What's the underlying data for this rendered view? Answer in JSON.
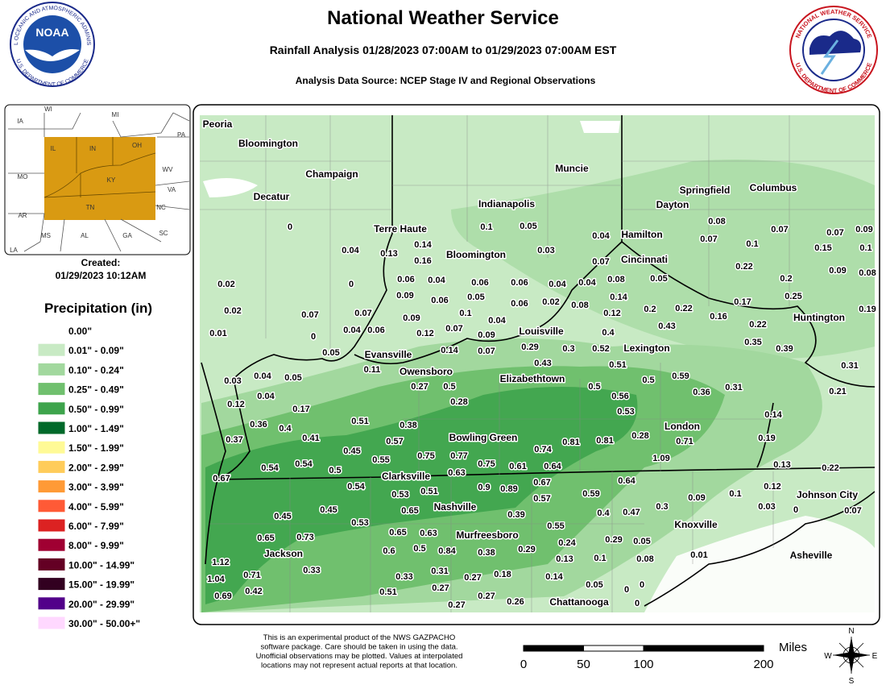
{
  "header": {
    "title": "National Weather Service",
    "subtitle": "Rainfall Analysis 01/28/2023 07:00AM to 01/29/2023 07:00AM EST",
    "source": "Analysis Data Source: NCEP Stage IV and Regional Observations"
  },
  "logos": {
    "noaa_name": "NOAA",
    "noaa_ring_top": "NATIONAL OCEANIC AND ATMOSPHERIC ADMINISTRATION",
    "noaa_ring_bottom": "U.S. DEPARTMENT OF COMMERCE",
    "nws_ring_top": "NATIONAL WEATHER SERVICE",
    "nws_ring_bottom": "U.S. DEPARTMENT OF COMMERCE"
  },
  "inset": {
    "states": [
      "WI",
      "MI",
      "IA",
      "IL",
      "IN",
      "OH",
      "PA",
      "WV",
      "MO",
      "KY",
      "VA",
      "AR",
      "TN",
      "NC",
      "MS",
      "AL",
      "GA",
      "SC",
      "LA"
    ],
    "created_label": "Created:",
    "created_date": "01/29/2023 10:12AM"
  },
  "legend": {
    "title": "Precipitation (in)",
    "items": [
      {
        "label": "0.00\"",
        "color": "#ffffff"
      },
      {
        "label": "0.01\" - 0.09\"",
        "color": "#c8eac4"
      },
      {
        "label": "0.10\" - 0.24\"",
        "color": "#a2d89e"
      },
      {
        "label": "0.25\" - 0.49\"",
        "color": "#70c06e"
      },
      {
        "label": "0.50\" - 0.99\"",
        "color": "#3ea44c"
      },
      {
        "label": "1.00\" - 1.49\"",
        "color": "#00692a"
      },
      {
        "label": "1.50\" - 1.99\"",
        "color": "#fffa96"
      },
      {
        "label": "2.00\" - 2.99\"",
        "color": "#ffcc5a"
      },
      {
        "label": "3.00\" - 3.99\"",
        "color": "#ff9a36"
      },
      {
        "label": "4.00\" - 5.99\"",
        "color": "#ff5a36"
      },
      {
        "label": "6.00\" - 7.99\"",
        "color": "#dc2222"
      },
      {
        "label": "8.00\" - 9.99\"",
        "color": "#a00032"
      },
      {
        "label": "10.00\" - 14.99\"",
        "color": "#640024"
      },
      {
        "label": "15.00\" - 19.99\"",
        "color": "#320020"
      },
      {
        "label": "20.00\" - 29.99\"",
        "color": "#52008a"
      },
      {
        "label": "30.00\" - 50.00+\"",
        "color": "#ffd8ff"
      }
    ]
  },
  "map": {
    "cities": [
      "Peoria",
      "Bloomington",
      "Champaign",
      "Decatur",
      "Muncie",
      "Indianapolis",
      "Springfield",
      "Columbus",
      "Dayton",
      "Terre Haute",
      "Hamilton",
      "Bloomington",
      "Cincinnati",
      "Huntington",
      "Louisville",
      "Lexington",
      "Evansville",
      "Owensboro",
      "Elizabethtown",
      "London",
      "Bowling Green",
      "Clarksville",
      "Johnson City",
      "Nashville",
      "Knoxville",
      "Murfreesboro",
      "Jackson",
      "Asheville",
      "Chattanooga"
    ],
    "observations": [
      0,
      0.1,
      0.05,
      0.04,
      0.13,
      0.14,
      0.16,
      0.03,
      0.04,
      0.07,
      0.08,
      0.07,
      0.1,
      0.07,
      0.07,
      0.09,
      0.15,
      0.1,
      0.22,
      0.09,
      0.08,
      0.02,
      0.06,
      0.04,
      0.06,
      0.06,
      0.04,
      0.04,
      0.08,
      0.05,
      0.2,
      0,
      0.09,
      0.06,
      0.05,
      0.06,
      0.02,
      0.08,
      0.14,
      0.17,
      0.25,
      0.02,
      0.07,
      0.07,
      0.09,
      0.1,
      0.04,
      0.12,
      0.2,
      0.22,
      0.16,
      0.19,
      0.01,
      0,
      0.04,
      0.06,
      0.12,
      0.07,
      0.09,
      0.4,
      0.43,
      0.22,
      0.05,
      0.14,
      0.07,
      0.29,
      0.3,
      0.52,
      0.35,
      0.39,
      0.11,
      0.43,
      0.51,
      0.31,
      0.03,
      0.04,
      0.05,
      0.27,
      0.5,
      0.5,
      0.5,
      0.59,
      0.36,
      0.31,
      0.21,
      0.04,
      0.12,
      0.17,
      0.28,
      0.56,
      0.53,
      0.14,
      0.36,
      0.4,
      0.51,
      0.38,
      0.37,
      0.41,
      0.57,
      0.81,
      0.81,
      0.28,
      0.71,
      0.19,
      0.45,
      0.55,
      0.75,
      0.77,
      0.74,
      0.54,
      0.54,
      0.5,
      0.63,
      0.75,
      0.61,
      0.64,
      1.09,
      0.13,
      0.22,
      0.67,
      0.54,
      0.53,
      0.51,
      0.9,
      0.89,
      0.67,
      0.64,
      0.12,
      0.57,
      0.59,
      0.09,
      0.1,
      0.03,
      0,
      0.07,
      0.45,
      0.45,
      0.65,
      0.39,
      0.4,
      0.47,
      0.3,
      0.53,
      0.55,
      0.65,
      0.73,
      0.65,
      0.63,
      0.24,
      0.29,
      0.05,
      0.6,
      0.5,
      0.84,
      0.38,
      0.29,
      0.13,
      0.1,
      0.08,
      0.01,
      1.12,
      0.33,
      0.31,
      0.18,
      1.04,
      0.71,
      0.33,
      0.27,
      0.14,
      0.05,
      0,
      0,
      0.42,
      0.69,
      0.51,
      0.27,
      0.27,
      0.27,
      0.26,
      0
    ]
  },
  "footer": {
    "disclaimer": [
      "This is an experimental product of the NWS GAZPACHO",
      "software package. Care should be taken in using the data.",
      "Unofficial observations may be plotted. Values at interpolated",
      "locations may not represent actual reports at that location."
    ],
    "scale_unit": "Miles",
    "scale_ticks": [
      0,
      50,
      100,
      200
    ],
    "compass": [
      "N",
      "S",
      "E",
      "W"
    ]
  }
}
